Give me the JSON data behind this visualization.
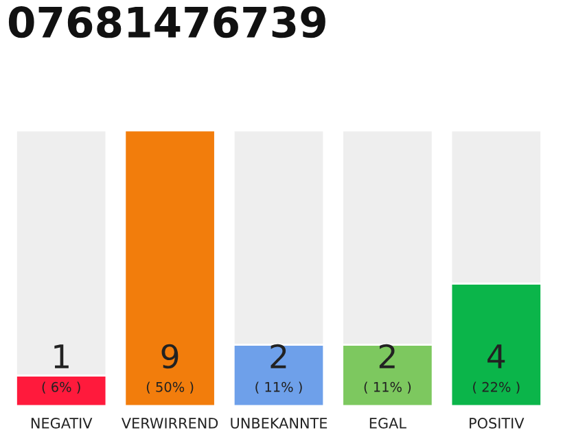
{
  "chart_data": {
    "type": "bar",
    "title": "07681476739",
    "categories": [
      "NEGATIV",
      "VERWIRREND",
      "UNBEKANNTE",
      "EGAL",
      "POSITIV"
    ],
    "stacked": true,
    "series": [
      {
        "colors": [
          "#ff1a3c",
          "#f27d0c",
          "#6ea0ea",
          "#7dc85f",
          "#0bb54a"
        ],
        "values": [
          1,
          9,
          2,
          2,
          4
        ],
        "value_labels": [
          "1\n( 6% )",
          "9\n( 50% )",
          "2\n( 11% )",
          "2\n( 11% )",
          "4\n( 22% )"
        ]
      },
      {
        "color": "#eeeeee",
        "values": [
          8,
          null,
          7,
          7,
          5
        ]
      }
    ],
    "legend": false
  }
}
